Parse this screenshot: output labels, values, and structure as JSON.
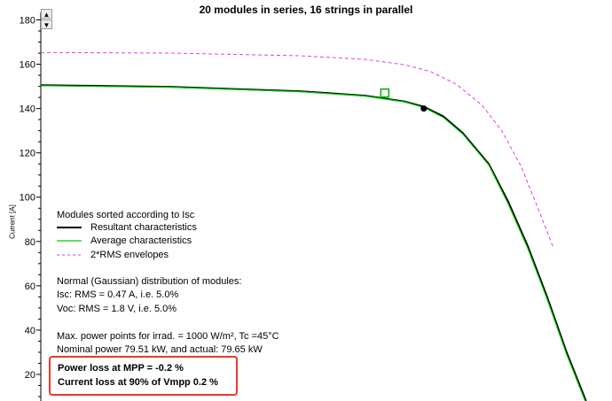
{
  "window": {
    "title": "20 modules in series, 16 strings in parallel"
  },
  "spin": {
    "up": "▲",
    "down": "▼"
  },
  "chart_data": {
    "type": "line",
    "title": "20 modules in series, 16 strings in parallel",
    "xlabel": "",
    "ylabel": "Current [A]",
    "ylim": [
      8,
      181
    ],
    "yticks": [
      20,
      40,
      60,
      80,
      100,
      120,
      140,
      160,
      180
    ],
    "legend": "left",
    "series": [
      {
        "name": "Resultant characteristics",
        "color": "#000000",
        "x": [
          0,
          100,
          200,
          250,
          280,
          295,
          310,
          325,
          345,
          360,
          375,
          390,
          405,
          420
        ],
        "y": [
          150.5,
          149.8,
          147.8,
          145.8,
          143.2,
          140.8,
          136.5,
          129,
          115,
          98,
          78,
          55,
          30,
          8
        ]
      },
      {
        "name": "Average characteristics",
        "color": "#00cc00",
        "x": [
          0,
          100,
          200,
          250,
          280,
          295,
          310,
          325,
          345,
          360,
          375,
          390,
          405,
          420
        ],
        "y": [
          150.3,
          149.6,
          147.6,
          145.6,
          143,
          140.5,
          136,
          128.5,
          114.5,
          97,
          77,
          54,
          29,
          7
        ]
      },
      {
        "name": "2*RMS envelopes",
        "color": "#e040e0",
        "x": [
          0,
          100,
          200,
          250,
          280,
          300,
          320,
          340,
          355,
          370,
          385,
          395
        ],
        "y": [
          165.3,
          165,
          163.8,
          162.2,
          159.8,
          156.8,
          151,
          141.5,
          130,
          114,
          92,
          77
        ]
      }
    ],
    "markers": [
      {
        "name": "mpp-point",
        "x": 295,
        "y": 140
      },
      {
        "name": "vmpp-90-marker",
        "x": 265,
        "y": 147
      }
    ]
  },
  "info": {
    "sort_title": "Modules sorted according to Isc",
    "legend_resultant": "Resultant characteristics",
    "legend_average": "Average characteristics",
    "legend_envelopes": "2*RMS  envelopes",
    "dist_title": "Normal (Gaussian) distribution of modules:",
    "isc_line": "Isc: RMS =  0.47 A, i.e.   5.0%",
    "voc_line": "Voc: RMS =   1.8 V, i.e.   5.0%",
    "mpp_line": "Max. power points for irrad. =  1000 W/m², Tc =45°C",
    "nominal_line": "Nominal power    79.51 kW, and actual:   79.65 kW"
  },
  "loss": {
    "power": "Power loss at MPP = -0.2 %",
    "current": "Current loss at 90% of  Vmpp   0.2 %"
  },
  "colors": {
    "axis": "#000000",
    "highlight_box": "#e83a2c"
  }
}
